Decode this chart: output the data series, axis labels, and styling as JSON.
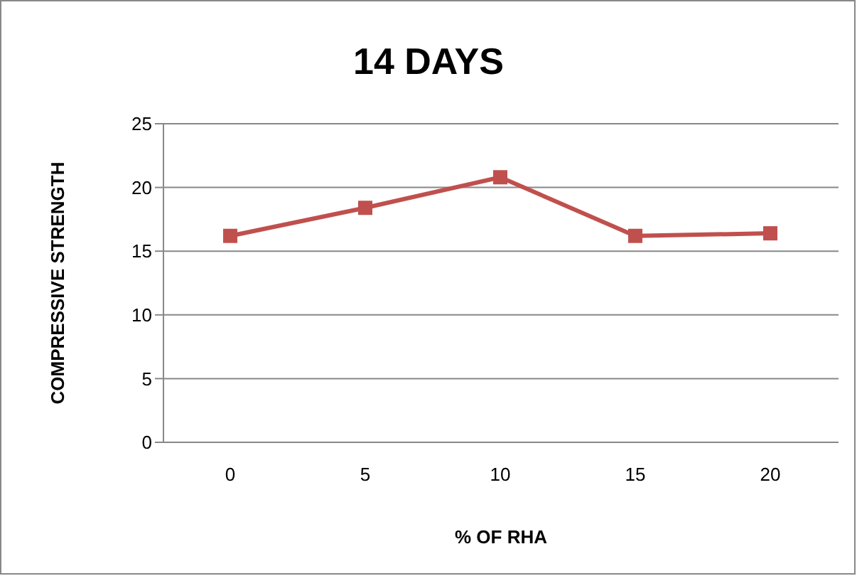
{
  "chart_data": {
    "type": "line",
    "title": "14 DAYS",
    "xlabel": "% OF RHA",
    "ylabel": "COMPRESSIVE STRENGTH",
    "categories": [
      "0",
      "5",
      "10",
      "15",
      "20"
    ],
    "series": [
      {
        "color": "#c0504d",
        "values": [
          16.2,
          18.4,
          20.8,
          16.2,
          16.4
        ]
      }
    ],
    "ylim": [
      0,
      25
    ],
    "yticks": [
      0,
      5,
      10,
      15,
      20,
      25
    ],
    "grid": "y",
    "legend": false,
    "marker": "square",
    "line_style": "solid"
  }
}
